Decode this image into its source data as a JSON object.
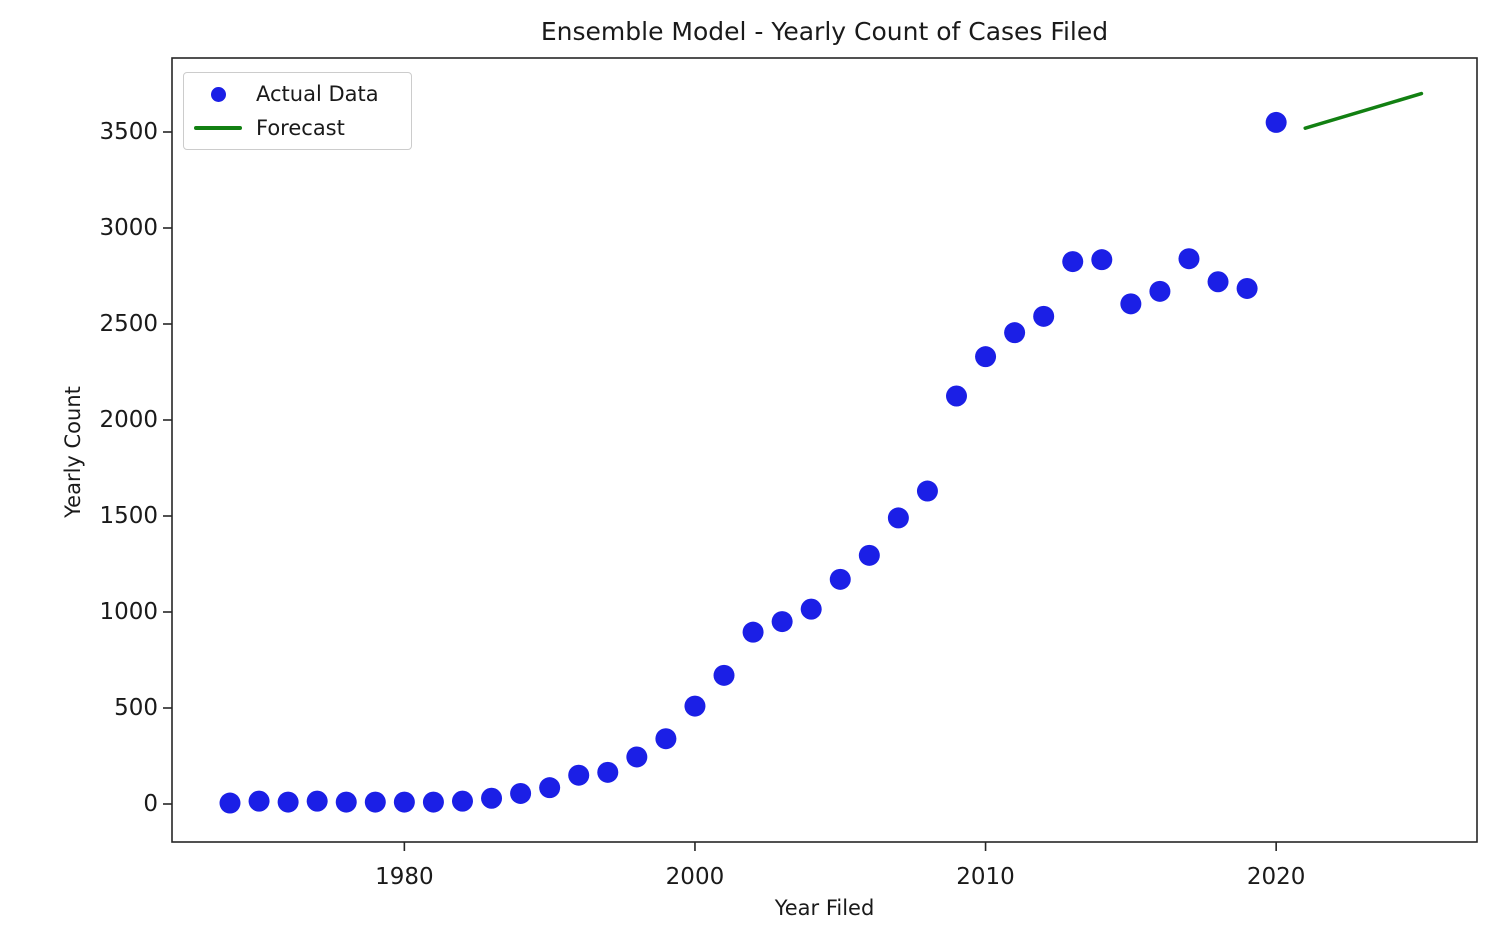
{
  "chart_data": {
    "type": "scatter",
    "title": "Ensemble Model - Yearly Count of Cases Filed",
    "xlabel": "Year Filed",
    "ylabel": "Yearly Count",
    "x_ticks": [
      1980,
      2000,
      2010,
      2020
    ],
    "y_ticks": [
      0,
      500,
      1000,
      1500,
      2000,
      2500,
      3000,
      3500
    ],
    "ylim": [
      -195,
      3885
    ],
    "grid": false,
    "legend_position": "upper left",
    "x_spacing_note": "points are equally spaced per observation: biennial 1968-2000, yearly 2000-2020, forecast 2021-2025",
    "series": [
      {
        "name": "Actual Data",
        "type": "scatter",
        "color": "#1b1fe6",
        "points": [
          [
            1968,
            5
          ],
          [
            1970,
            15
          ],
          [
            1972,
            10
          ],
          [
            1974,
            15
          ],
          [
            1976,
            10
          ],
          [
            1978,
            10
          ],
          [
            1980,
            10
          ],
          [
            1982,
            10
          ],
          [
            1984,
            15
          ],
          [
            1986,
            30
          ],
          [
            1988,
            55
          ],
          [
            1990,
            85
          ],
          [
            1992,
            150
          ],
          [
            1994,
            165
          ],
          [
            1996,
            245
          ],
          [
            1998,
            340
          ],
          [
            2000,
            510
          ],
          [
            2001,
            670
          ],
          [
            2002,
            895
          ],
          [
            2003,
            950
          ],
          [
            2004,
            1015
          ],
          [
            2005,
            1170
          ],
          [
            2006,
            1295
          ],
          [
            2007,
            1490
          ],
          [
            2008,
            1630
          ],
          [
            2009,
            2125
          ],
          [
            2010,
            2330
          ],
          [
            2011,
            2455
          ],
          [
            2012,
            2540
          ],
          [
            2013,
            2825
          ],
          [
            2014,
            2835
          ],
          [
            2015,
            2605
          ],
          [
            2016,
            2670
          ],
          [
            2017,
            2840
          ],
          [
            2018,
            2720
          ],
          [
            2019,
            2685
          ],
          [
            2020,
            3550
          ]
        ]
      },
      {
        "name": "Forecast",
        "type": "line",
        "color": "#128012",
        "points": [
          [
            2021,
            3520
          ],
          [
            2025,
            3700
          ]
        ]
      }
    ]
  }
}
